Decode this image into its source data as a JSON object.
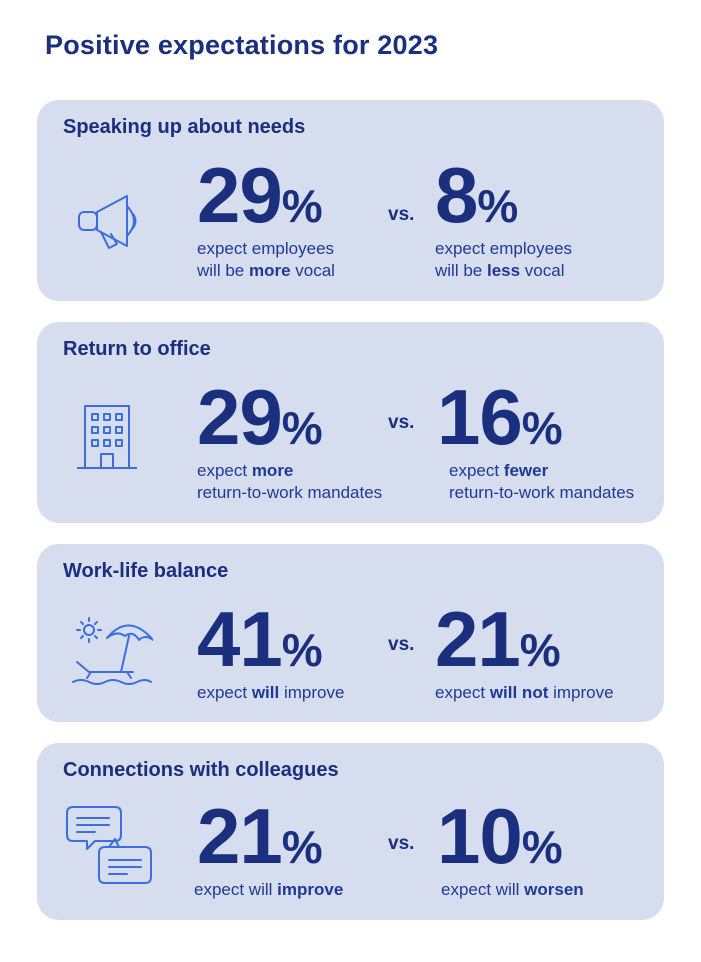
{
  "title": "Positive expectations for 2023",
  "colors": {
    "primary": "#1a2f7d",
    "card_bg": "#d5ddee",
    "icon": "#3b6fe0"
  },
  "chart_data": {
    "type": "table",
    "title": "Positive expectations for 2023",
    "rows": [
      {
        "category": "Speaking up about needs",
        "icon": "megaphone-icon",
        "left": {
          "value": 29,
          "unit": "%",
          "desc_pre": "expect employees",
          "desc_line2_pre": "will be ",
          "desc_bold": "more",
          "desc_post": " vocal"
        },
        "vs": "vs.",
        "right": {
          "value": 8,
          "unit": "%",
          "desc_pre": "expect employees",
          "desc_line2_pre": "will be ",
          "desc_bold": "less",
          "desc_post": " vocal"
        }
      },
      {
        "category": "Return to office",
        "icon": "office-building-icon",
        "left": {
          "value": 29,
          "unit": "%",
          "desc_pre": "expect ",
          "desc_bold": "more",
          "desc_line2": "return-to-work mandates"
        },
        "vs": "vs.",
        "right": {
          "value": 16,
          "unit": "%",
          "desc_pre": "expect ",
          "desc_bold": "fewer",
          "desc_line2": "return-to-work mandates"
        }
      },
      {
        "category": "Work-life balance",
        "icon": "beach-umbrella-icon",
        "left": {
          "value": 41,
          "unit": "%",
          "desc_pre": "expect ",
          "desc_bold": "will",
          "desc_post": " improve"
        },
        "vs": "vs.",
        "right": {
          "value": 21,
          "unit": "%",
          "desc_pre": "expect ",
          "desc_bold": "will not",
          "desc_post": " improve"
        }
      },
      {
        "category": "Connections with colleagues",
        "icon": "chat-bubbles-icon",
        "left": {
          "value": 21,
          "unit": "%",
          "desc_pre": "expect will ",
          "desc_bold": "improve"
        },
        "vs": "vs.",
        "right": {
          "value": 10,
          "unit": "%",
          "desc_pre": "expect will ",
          "desc_bold": "worsen"
        }
      }
    ]
  }
}
